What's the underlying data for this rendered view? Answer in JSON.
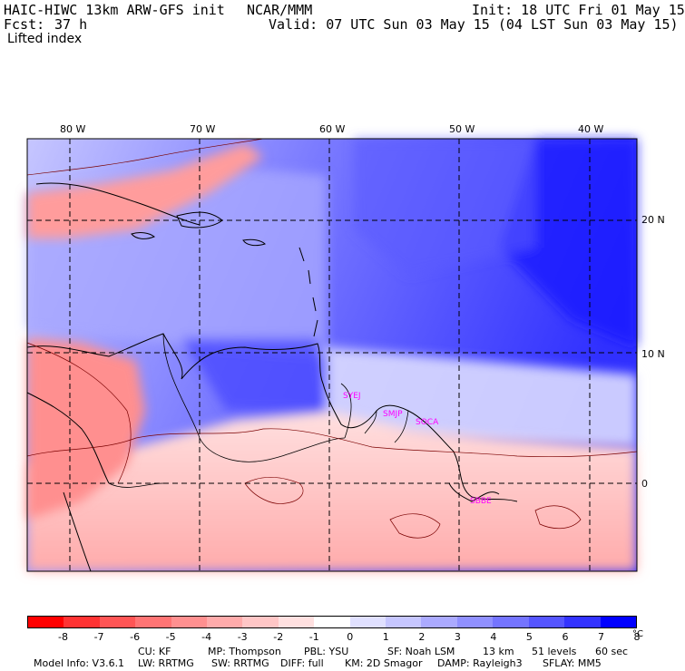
{
  "header": {
    "model_title": "HAIC-HIWC 13km ARW-GFS init",
    "org": "NCAR/MMM",
    "init": "Init: 18 UTC Fri 01 May 15",
    "fcst_label": "Fcst:",
    "fcst_value": "37 h",
    "valid": "Valid: 07 UTC Sun 03 May 15 (04 LST Sun 03 May 15)",
    "field": "Lifted index"
  },
  "map": {
    "lon_labels": [
      "80 W",
      "70 W",
      "60 W",
      "50 W",
      "40 W"
    ],
    "lat_labels": [
      "20 N",
      "10 N",
      "0"
    ],
    "stations": [
      "SYEJ",
      "SMJP",
      "SOCA",
      "SBBE"
    ]
  },
  "colorbar": {
    "colors": [
      "#ff0000",
      "#ff3333",
      "#ff5555",
      "#ff7474",
      "#ff9090",
      "#ffabab",
      "#ffc6c6",
      "#ffe0e0",
      "#ffffff",
      "#e0e0ff",
      "#c6c6ff",
      "#abaaff",
      "#9090ff",
      "#7474ff",
      "#5555ff",
      "#3333ff",
      "#0000ff"
    ],
    "ticks": [
      "-8",
      "-7",
      "-6",
      "-5",
      "-4",
      "-3",
      "-2",
      "-1",
      "0",
      "1",
      "2",
      "3",
      "4",
      "5",
      "6",
      "7",
      "8"
    ],
    "unit": "°C"
  },
  "model_info": {
    "line1": [
      "Model Info: V3.6.1",
      "CU: KF",
      "MP: Thompson",
      "PBL: YSU",
      "SF: Noah LSM",
      "13 km",
      "51 levels",
      "60 sec"
    ],
    "line2": [
      "LW: RRTMG",
      "SW: RRTMG",
      "DIFF: full",
      "KM: 2D Smagor",
      "DAMP: Rayleigh3",
      "SFLAY: MM5"
    ]
  }
}
